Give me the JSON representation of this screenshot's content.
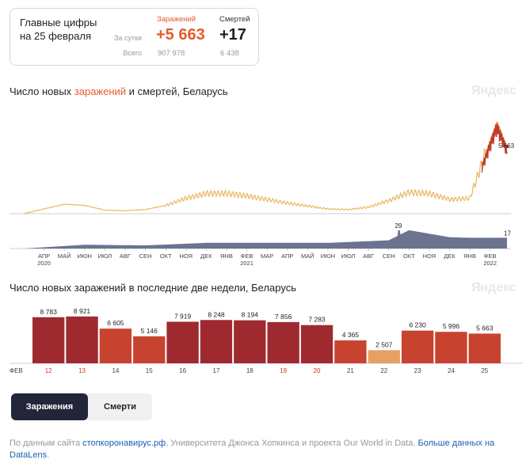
{
  "summary": {
    "title_line1": "Главные цифры",
    "title_line2": "на 25 февраля",
    "row_day_label": "За сутки",
    "row_total_label": "Всего",
    "cases_header": "Заражений",
    "deaths_header": "Смертей",
    "cases_day": "+5 663",
    "deaths_day": "+17",
    "cases_total": "907 978",
    "deaths_total": "6 438"
  },
  "chart1": {
    "title_pre": "Число новых ",
    "title_cases": "заражений",
    "title_mid": " и ",
    "title_deaths": "смертей",
    "title_post": ", Беларусь",
    "watermark": "Яндекс"
  },
  "chart2": {
    "title": "Число новых заражений в последние две недели, Беларусь",
    "watermark": "Яндекс",
    "month_label": "ФЕВ"
  },
  "tabs": {
    "active": "Заражения",
    "inactive": "Смерти"
  },
  "footer": {
    "prefix": "По данным сайта ",
    "link1": "стопкоронавирус.рф",
    "middle": ", Университета Джонса Хопкинса и проекта Our World in Data. ",
    "link2": "Больше данных на DataLens",
    "suffix": "."
  },
  "colors": {
    "cases": "#e55b2c",
    "cases_line": "#e8b660",
    "cases_peak": "#c0392b",
    "deaths_fill": "#6b7391",
    "bar_dark": "#9e2a2f",
    "bar_mid": "#c8432f",
    "bar_light": "#e8a062"
  },
  "chart_data": [
    {
      "type": "line",
      "title": "Число новых заражений и смертей, Беларусь",
      "x_tick_labels": [
        "АПР",
        "МАЙ",
        "ИЮН",
        "ИЮЛ",
        "АВГ",
        "СЕН",
        "ОКТ",
        "НОЯ",
        "ДЕК",
        "ЯНВ",
        "ФЕВ",
        "МАР",
        "АПР",
        "МАЙ",
        "ИЮН",
        "ИЮЛ",
        "АВГ",
        "СЕН",
        "ОКТ",
        "НОЯ",
        "ДЕК",
        "ЯНВ",
        "ФЕВ"
      ],
      "year_labels": [
        "2020",
        "2021",
        "2022"
      ],
      "series": [
        {
          "name": "заражений",
          "x": [
            "2020-03",
            "2020-04",
            "2020-05",
            "2020-06",
            "2020-07",
            "2020-08",
            "2020-09",
            "2020-10",
            "2020-11",
            "2020-12",
            "2021-01",
            "2021-02",
            "2021-03",
            "2021-04",
            "2021-05",
            "2021-06",
            "2021-07",
            "2021-08",
            "2021-09",
            "2021-10",
            "2021-11",
            "2021-12",
            "2022-01",
            "2022-02-10",
            "2022-02-25"
          ],
          "values": [
            0,
            400,
            800,
            700,
            300,
            250,
            350,
            700,
            1300,
            1700,
            1700,
            1500,
            1200,
            900,
            650,
            400,
            350,
            550,
            1100,
            1800,
            1700,
            1200,
            1300,
            7800,
            5663
          ]
        },
        {
          "name": "смертей",
          "x": [
            "2020-03",
            "2020-06",
            "2020-09",
            "2020-12",
            "2021-03",
            "2021-06",
            "2021-09",
            "2021-10",
            "2021-12",
            "2022-01",
            "2022-02-25"
          ],
          "values": [
            0,
            6,
            5,
            9,
            9,
            9,
            13,
            29,
            18,
            17,
            17
          ]
        }
      ],
      "annotations": [
        "29",
        "17",
        "5 663"
      ]
    },
    {
      "type": "bar",
      "title": "Число новых заражений в последние две недели, Беларусь",
      "categories": [
        "12",
        "13",
        "14",
        "15",
        "16",
        "17",
        "18",
        "19",
        "20",
        "21",
        "22",
        "23",
        "24",
        "25"
      ],
      "weekend_days": [
        "12",
        "13",
        "19",
        "20"
      ],
      "values": [
        8783,
        8921,
        6605,
        5146,
        7919,
        8248,
        8194,
        7856,
        7283,
        4365,
        2507,
        6230,
        5996,
        5663
      ],
      "labels": [
        "8 783",
        "8 921",
        "6 605",
        "5 146",
        "7 919",
        "8 248",
        "8 194",
        "7 856",
        "7 283",
        "4 365",
        "2 507",
        "6 230",
        "5 996",
        "5 663"
      ],
      "ylim": [
        0,
        9500
      ]
    }
  ]
}
